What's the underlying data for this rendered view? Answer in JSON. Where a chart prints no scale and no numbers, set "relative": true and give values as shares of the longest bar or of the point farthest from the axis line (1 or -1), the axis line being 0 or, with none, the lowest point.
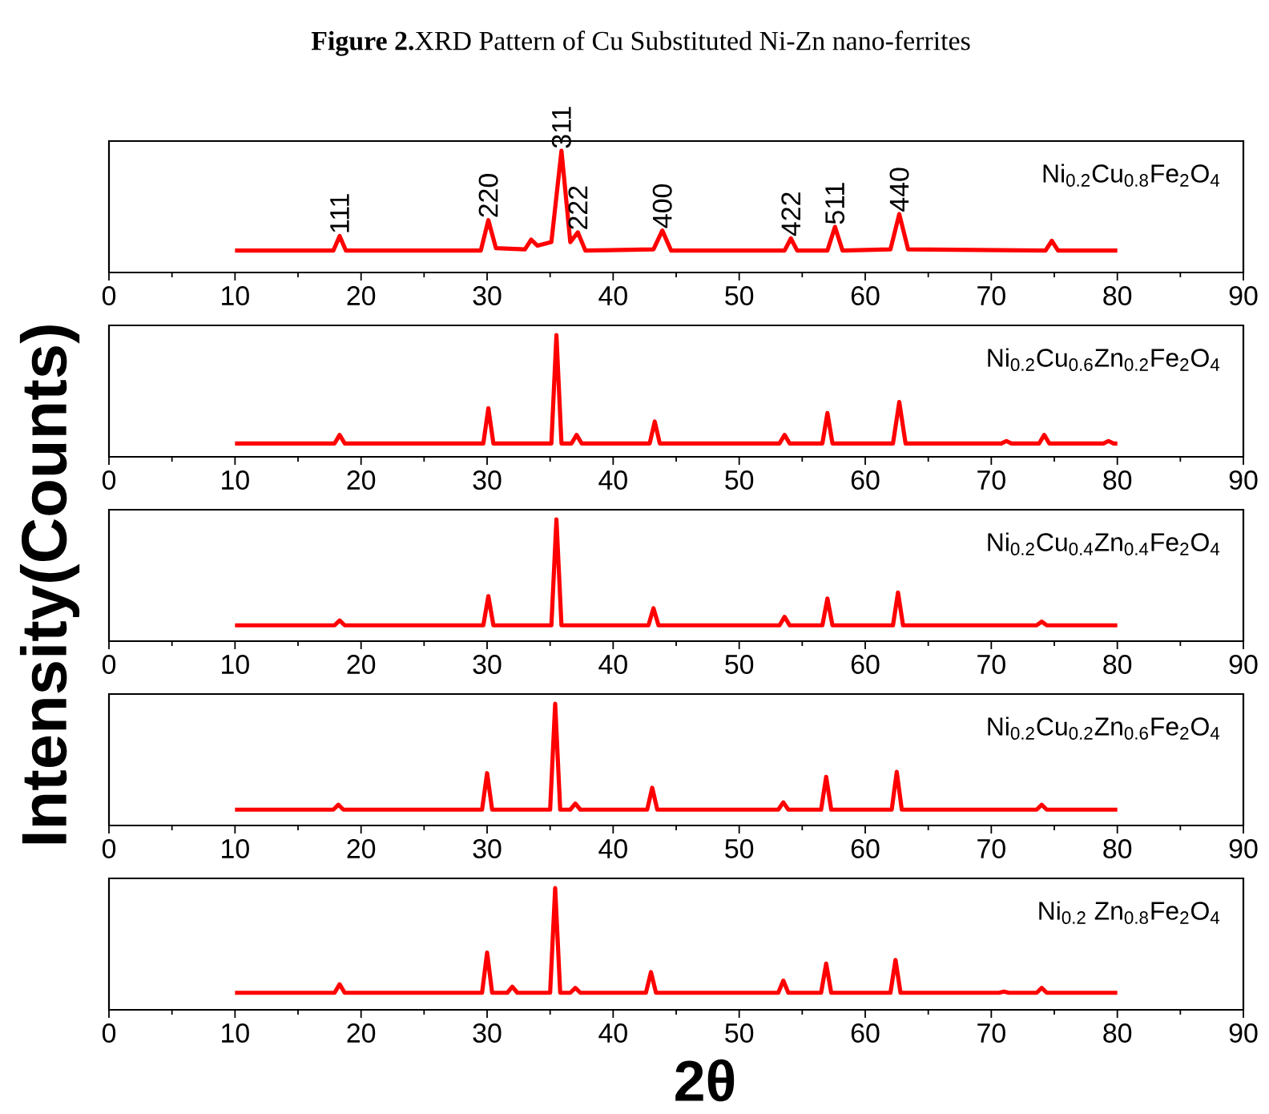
{
  "chart_data": [
    {
      "type": "line",
      "relative": true,
      "title": "**Figure 2.**XRD Pattern of Cu Substituted Ni-Zn nano-ferrites",
      "xlim": [
        0,
        90
      ],
      "xticks": [
        0,
        10,
        20,
        30,
        40,
        50,
        60,
        70,
        80,
        90
      ],
      "tick_labels": "x",
      "x": [
        10,
        17.8,
        18.3,
        18.8,
        29.5,
        30.1,
        30.7,
        33,
        33.5,
        34,
        35.1,
        35.9,
        36.6,
        37.2,
        37.8,
        43.2,
        43.9,
        44.6,
        53.6,
        54.1,
        54.6,
        57,
        57.6,
        58.2,
        62,
        62.7,
        63.4,
        74.3,
        74.8,
        75.3,
        80
      ],
      "series": [
        {
          "name": "Ni$_{0.2}$Cu$_{0.8}$Fe$_{2}$O$_{4}$",
          "color": "#ff0000",
          "values": [
            0.18,
            0.18,
            0.3,
            0.18,
            0.18,
            0.43,
            0.2,
            0.19,
            0.27,
            0.22,
            0.25,
            1,
            0.25,
            0.33,
            0.18,
            0.19,
            0.345,
            0.18,
            0.18,
            0.28,
            0.18,
            0.18,
            0.375,
            0.18,
            0.19,
            0.48,
            0.19,
            0.18,
            0.26,
            0.18,
            0.18
          ]
        }
      ],
      "annotations": [
        {
          "text": "111",
          "x": 18.3,
          "y": 0.3
        },
        {
          "text": "220",
          "x": 30.1,
          "y": 0.43
        },
        {
          "text": "311",
          "x": 35.9,
          "y": 1
        },
        {
          "text": "222",
          "x": 37.2,
          "y": 0.33
        },
        {
          "text": "400",
          "x": 43.9,
          "y": 0.345
        },
        {
          "text": "422",
          "x": 54.1,
          "y": 0.28
        },
        {
          "text": "511",
          "x": 57.6,
          "y": 0.375
        },
        {
          "text": "440",
          "x": 62.7,
          "y": 0.48
        }
      ]
    },
    {
      "type": "line",
      "relative": true,
      "xlim": [
        0,
        90
      ],
      "xticks": [
        0,
        10,
        20,
        30,
        40,
        50,
        60,
        70,
        80,
        90
      ],
      "tick_labels": "x",
      "x": [
        10,
        17.9,
        18.3,
        18.7,
        29.7,
        30.1,
        30.5,
        35.1,
        35.5,
        35.9,
        36.7,
        37.1,
        37.5,
        42.9,
        43.3,
        43.7,
        53.2,
        53.6,
        54,
        56.6,
        57,
        57.4,
        62.2,
        62.7,
        63.2,
        70.8,
        71.2,
        71.6,
        73.8,
        74.2,
        74.6,
        78.9,
        79.3,
        79.7,
        80
      ],
      "series": [
        {
          "name": "Ni$_{0.2}$Cu$_{0.6}$Zn$_{0.2}$Fe$_{2}$O$_{4}$",
          "color": "#ff0000",
          "values": [
            0.11,
            0.11,
            0.18,
            0.11,
            0.11,
            0.4,
            0.11,
            0.11,
            1,
            0.11,
            0.11,
            0.18,
            0.11,
            0.11,
            0.29,
            0.11,
            0.11,
            0.18,
            0.11,
            0.11,
            0.36,
            0.11,
            0.11,
            0.45,
            0.11,
            0.11,
            0.13,
            0.11,
            0.11,
            0.18,
            0.11,
            0.11,
            0.13,
            0.11,
            0.11
          ]
        }
      ]
    },
    {
      "type": "line",
      "relative": true,
      "ylabel": "Intensity(Counts)",
      "xlim": [
        0,
        90
      ],
      "xticks": [
        0,
        10,
        20,
        30,
        40,
        50,
        60,
        70,
        80,
        90
      ],
      "tick_labels": "x",
      "x": [
        10,
        17.9,
        18.3,
        18.7,
        29.7,
        30.1,
        30.5,
        35.1,
        35.5,
        35.9,
        42.8,
        43.2,
        43.6,
        53.2,
        53.6,
        54,
        56.6,
        57,
        57.4,
        62.2,
        62.6,
        63,
        73.6,
        74,
        74.4,
        80
      ],
      "series": [
        {
          "name": "Ni$_{0.2}$Cu$_{0.4}$Zn$_{0.4}$Fe$_{2}$O$_{4}$",
          "color": "#ff0000",
          "values": [
            0.13,
            0.13,
            0.17,
            0.13,
            0.13,
            0.37,
            0.13,
            0.13,
            1,
            0.13,
            0.13,
            0.27,
            0.13,
            0.13,
            0.2,
            0.13,
            0.13,
            0.35,
            0.13,
            0.13,
            0.4,
            0.13,
            0.13,
            0.16,
            0.13,
            0.13
          ]
        }
      ]
    },
    {
      "type": "line",
      "relative": true,
      "xlim": [
        0,
        90
      ],
      "xticks": [
        0,
        10,
        20,
        30,
        40,
        50,
        60,
        70,
        80,
        90
      ],
      "tick_labels": "x",
      "x": [
        10,
        17.8,
        18.2,
        18.6,
        29.6,
        30,
        30.4,
        35,
        35.4,
        35.8,
        36.6,
        37,
        37.4,
        42.7,
        43.1,
        43.5,
        53.1,
        53.5,
        53.9,
        56.5,
        56.9,
        57.3,
        62.1,
        62.5,
        62.9,
        73.6,
        74,
        74.4,
        80
      ],
      "series": [
        {
          "name": "Ni$_{0.2}$Cu$_{0.2}$Zn$_{0.6}$Fe$_{2}$O$_{4}$",
          "color": "#ff0000",
          "values": [
            0.13,
            0.13,
            0.17,
            0.13,
            0.13,
            0.43,
            0.13,
            0.13,
            1,
            0.13,
            0.13,
            0.18,
            0.13,
            0.13,
            0.31,
            0.13,
            0.13,
            0.19,
            0.13,
            0.13,
            0.4,
            0.13,
            0.13,
            0.44,
            0.13,
            0.13,
            0.17,
            0.13,
            0.13
          ]
        }
      ]
    },
    {
      "type": "line",
      "relative": true,
      "xlabel": "2θ",
      "xlim": [
        0,
        90
      ],
      "xticks": [
        0,
        10,
        20,
        30,
        40,
        50,
        60,
        70,
        80,
        90
      ],
      "tick_labels": "x",
      "x": [
        10,
        17.9,
        18.3,
        18.7,
        29.6,
        30,
        30.4,
        31.6,
        32,
        32.4,
        35,
        35.4,
        35.8,
        36.6,
        37,
        37.4,
        42.6,
        43,
        43.4,
        53.1,
        53.5,
        53.9,
        56.5,
        56.9,
        57.3,
        62,
        62.4,
        62.8,
        70.6,
        71,
        71.4,
        73.6,
        74,
        74.4,
        80
      ],
      "series": [
        {
          "name": "Ni$_{0.2}$ Zn$_{0.8}$Fe$_{2}$O$_{4}$",
          "color": "#ff0000",
          "values": [
            0.14,
            0.14,
            0.21,
            0.14,
            0.14,
            0.47,
            0.14,
            0.14,
            0.19,
            0.14,
            0.14,
            1,
            0.14,
            0.14,
            0.18,
            0.14,
            0.14,
            0.31,
            0.14,
            0.14,
            0.24,
            0.14,
            0.14,
            0.38,
            0.14,
            0.14,
            0.41,
            0.14,
            0.14,
            0.15,
            0.14,
            0.14,
            0.18,
            0.14,
            0.14
          ]
        }
      ]
    }
  ]
}
